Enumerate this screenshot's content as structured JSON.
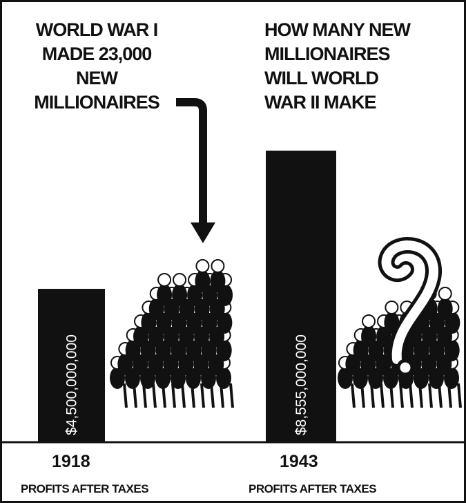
{
  "chart_data": {
    "type": "bar",
    "annotations": [
      [
        "WORLD WAR I",
        "MADE 23,000",
        "NEW",
        "MILLIONAIRES"
      ],
      [
        "HOW MANY NEW",
        "MILLIONAIRES",
        "WILL WORLD",
        "WAR II MAKE"
      ]
    ],
    "categories": [
      "1918",
      "1943"
    ],
    "category_sublabels": [
      "PROFITS AFTER TAXES",
      "PROFITS AFTER TAXES"
    ],
    "values": [
      4500000000,
      8555000000
    ],
    "value_labels": [
      "$4,500,000,000",
      "$8,555,000,000"
    ],
    "color": "#111111"
  }
}
